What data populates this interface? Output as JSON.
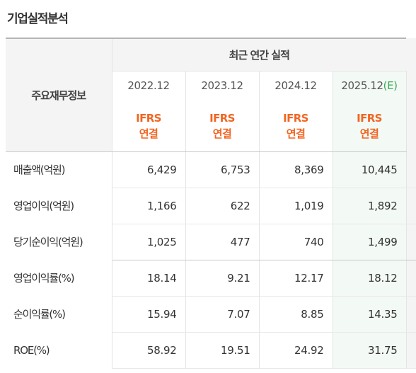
{
  "section_title": "기업실적분석",
  "table": {
    "corner_label": "주요재무정보",
    "group_header": "최근 연간 실적",
    "periods": [
      {
        "label": "2022.12",
        "suffix": ""
      },
      {
        "label": "2023.12",
        "suffix": ""
      },
      {
        "label": "2024.12",
        "suffix": ""
      },
      {
        "label": "2025.12",
        "suffix": "(E)"
      }
    ],
    "basis": [
      {
        "line1": "IFRS",
        "line2": "연결"
      },
      {
        "line1": "IFRS",
        "line2": "연결"
      },
      {
        "line1": "IFRS",
        "line2": "연결"
      },
      {
        "line1": "IFRS",
        "line2": "연결"
      }
    ],
    "rows": [
      {
        "label": "매출액(억원)",
        "values": [
          "6,429",
          "6,753",
          "8,369",
          "10,445"
        ]
      },
      {
        "label": "영업이익(억원)",
        "values": [
          "1,166",
          "622",
          "1,019",
          "1,892"
        ]
      },
      {
        "label": "당기순이익(억원)",
        "values": [
          "1,025",
          "477",
          "740",
          "1,499"
        ]
      },
      {
        "label": "영업이익률(%)",
        "values": [
          "18.14",
          "9.21",
          "12.17",
          "18.12"
        ]
      },
      {
        "label": "순이익률(%)",
        "values": [
          "15.94",
          "7.07",
          "8.85",
          "14.35"
        ]
      },
      {
        "label": "ROE(%)",
        "values": [
          "58.92",
          "19.51",
          "24.92",
          "31.75"
        ]
      }
    ]
  },
  "colors": {
    "basis_orange": "#f26522",
    "estimate_green": "#3da85a",
    "estimate_column_bg": "#f3f9f4",
    "header_bg": "#f4f4f4"
  }
}
